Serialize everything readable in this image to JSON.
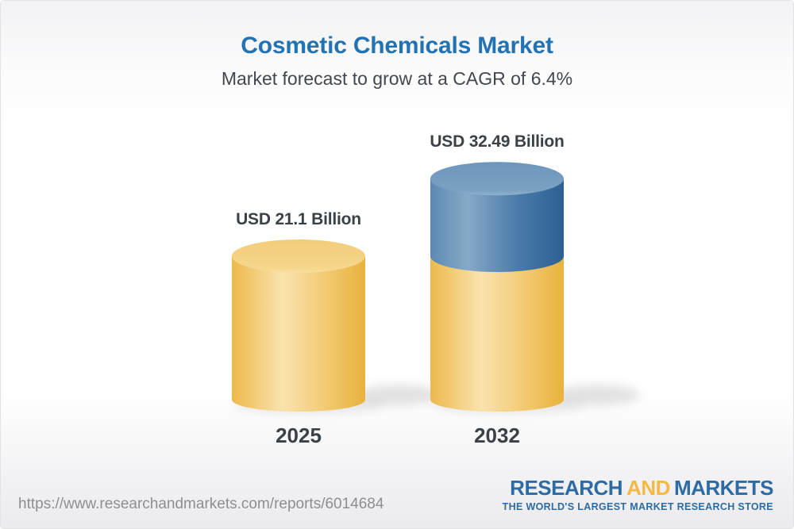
{
  "header": {
    "title": "Cosmetic Chemicals Market",
    "subtitle": "Market forecast to grow at a CAGR of 6.4%"
  },
  "chart_data": {
    "type": "bar",
    "title": "Cosmetic Chemicals Market",
    "subtitle": "Market forecast to grow at a CAGR of 6.4%",
    "cagr_percent": 6.4,
    "unit": "USD Billion",
    "categories": [
      "2025",
      "2032"
    ],
    "values": [
      21.1,
      32.49
    ],
    "value_labels": [
      "USD 21.1 Billion",
      "USD 32.49 Billion"
    ],
    "series": [
      {
        "name": "2025 base value",
        "color": "#F2C05C"
      },
      {
        "name": "2032 incremental growth",
        "color": "#4E81AE"
      }
    ],
    "bar_style": "3d-cylinder; the 2032 cylinder shows the 2025 base in yellow with the growth segment stacked in blue",
    "ylim": [
      0,
      35
    ],
    "grid": false,
    "axes_visible": false,
    "legend_position": "none"
  },
  "footer": {
    "url": "https://www.researchandmarkets.com/reports/6014684",
    "logo": {
      "word1": "RESEARCH",
      "word2": "AND",
      "word3": "MARKETS",
      "tagline": "THE WORLD'S LARGEST MARKET RESEARCH STORE",
      "blue": "#2D6BA4",
      "gold": "#F3B942"
    }
  },
  "colors": {
    "title_blue": "#2173B4",
    "text_dark": "#3A4147",
    "url_gray": "#8E8E90",
    "cylinder_yellow": "#F0BE53",
    "cylinder_blue": "#4E81AE",
    "background_top": "#F2F2F4",
    "background_bottom": "#EBEBED"
  }
}
